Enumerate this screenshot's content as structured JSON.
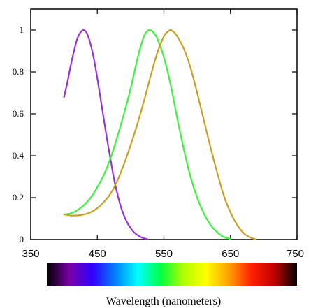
{
  "chart_data": {
    "type": "line",
    "title": "",
    "xlabel": "Wavelength (nanometers)",
    "ylabel": "",
    "xlim": [
      350,
      750
    ],
    "ylim": [
      0,
      1.1
    ],
    "x_ticks": [
      350,
      450,
      550,
      650,
      750
    ],
    "x_tick_labels": [
      "350",
      "450",
      "550",
      "650",
      "750"
    ],
    "y_ticks": [
      0,
      0.2,
      0.4,
      0.6,
      0.8,
      1
    ],
    "y_tick_labels": [
      "0",
      "0.2",
      "0.4",
      "0.6",
      "0.8",
      "1"
    ],
    "grid": false,
    "legend": "none",
    "series": [
      {
        "color": "#9b30d9",
        "x": [
          400,
          405,
          410,
          415,
          420,
          425,
          430,
          435,
          440,
          445,
          450,
          455,
          460,
          465,
          470,
          475,
          480,
          485,
          490,
          495,
          500,
          505,
          510,
          515,
          520,
          525
        ],
        "y": [
          0.68,
          0.75,
          0.83,
          0.9,
          0.96,
          0.99,
          1.0,
          0.98,
          0.93,
          0.86,
          0.77,
          0.67,
          0.57,
          0.47,
          0.38,
          0.29,
          0.22,
          0.16,
          0.115,
          0.08,
          0.055,
          0.035,
          0.022,
          0.012,
          0.006,
          0.002
        ]
      },
      {
        "color": "#3cf23c",
        "x": [
          400,
          410,
          420,
          430,
          440,
          450,
          460,
          470,
          480,
          490,
          500,
          510,
          515,
          520,
          525,
          530,
          535,
          540,
          550,
          560,
          570,
          580,
          590,
          600,
          610,
          620,
          630,
          640,
          650
        ],
        "y": [
          0.12,
          0.125,
          0.14,
          0.165,
          0.2,
          0.25,
          0.31,
          0.39,
          0.49,
          0.6,
          0.72,
          0.86,
          0.92,
          0.97,
          0.995,
          1.0,
          0.985,
          0.96,
          0.87,
          0.74,
          0.58,
          0.43,
          0.3,
          0.2,
          0.125,
          0.07,
          0.035,
          0.012,
          0.003
        ]
      },
      {
        "color": "#c9a020",
        "x": [
          400,
          410,
          420,
          430,
          440,
          450,
          460,
          470,
          480,
          490,
          500,
          510,
          520,
          530,
          540,
          550,
          555,
          560,
          565,
          570,
          580,
          590,
          600,
          610,
          620,
          630,
          640,
          650,
          660,
          670,
          680,
          688
        ],
        "y": [
          0.12,
          0.115,
          0.115,
          0.12,
          0.13,
          0.15,
          0.18,
          0.22,
          0.28,
          0.36,
          0.45,
          0.55,
          0.66,
          0.78,
          0.89,
          0.97,
          0.99,
          1.0,
          0.99,
          0.97,
          0.91,
          0.82,
          0.7,
          0.57,
          0.44,
          0.32,
          0.21,
          0.13,
          0.07,
          0.03,
          0.01,
          0.001
        ]
      }
    ],
    "colorbar": {
      "range": [
        400,
        700
      ],
      "stops": [
        "#000000",
        "#7a00a8",
        "#3000ff",
        "#0080ff",
        "#00ffff",
        "#00ff40",
        "#b0ff00",
        "#ffff00",
        "#ffa000",
        "#ff2000",
        "#c00000",
        "#000000"
      ]
    }
  }
}
